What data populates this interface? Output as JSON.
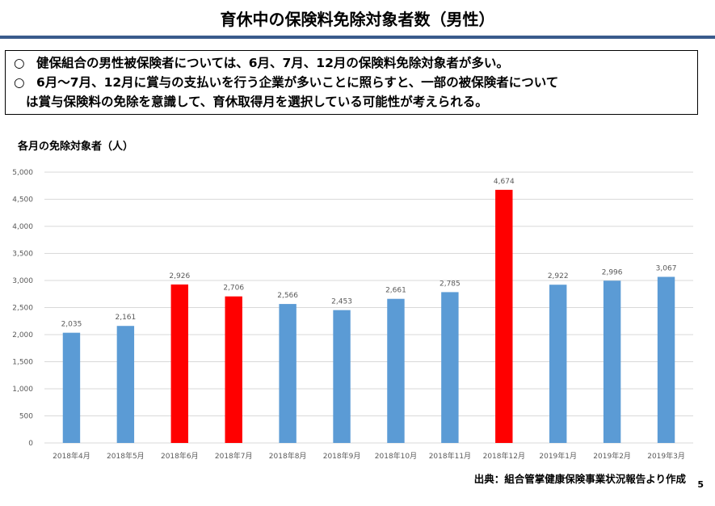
{
  "page": {
    "title": "育休中の保険料免除対象者数（男性）",
    "summary": [
      {
        "mark": "○",
        "text": "健保組合の男性被保険者については、6月、7月、12月の保険料免除対象者が多い。"
      },
      {
        "mark": "○",
        "text": "6月～7月、12月に賞与の支払いを行う企業が多いことに照らすと、一部の被保険者について"
      },
      {
        "mark": "",
        "text": "は賞与保険料の免除を意識して、育休取得月を選択している可能性が考えられる。"
      }
    ],
    "chart_label": "各月の免除対象者（人）",
    "source": "出典：組合管掌健康保険事業状況報告より作成",
    "page_number": "5"
  },
  "chart_data": {
    "type": "bar",
    "title": "",
    "xlabel": "",
    "ylabel": "",
    "categories": [
      "2018年4月",
      "2018年5月",
      "2018年6月",
      "2018年7月",
      "2018年8月",
      "2018年9月",
      "2018年10月",
      "2018年11月",
      "2018年12月",
      "2019年1月",
      "2019年2月",
      "2019年3月"
    ],
    "values": [
      2035,
      2161,
      2926,
      2706,
      2566,
      2453,
      2661,
      2785,
      4674,
      2922,
      2996,
      3067
    ],
    "data_labels": [
      "2,035",
      "2,161",
      "2,926",
      "2,706",
      "2,566",
      "2,453",
      "2,661",
      "2,785",
      "4,674",
      "2,922",
      "2,996",
      "3,067"
    ],
    "ylim": [
      0,
      5000
    ],
    "yticks": [
      0,
      500,
      1000,
      1500,
      2000,
      2500,
      3000,
      3500,
      4000,
      4500,
      5000
    ],
    "ytick_labels": [
      "0",
      "500",
      "1,000",
      "1,500",
      "2,000",
      "2,500",
      "3,000",
      "3,500",
      "4,000",
      "4,500",
      "5,000"
    ],
    "highlight": [
      false,
      false,
      true,
      true,
      false,
      false,
      false,
      false,
      true,
      false,
      false,
      false
    ],
    "grid": true,
    "legend": "none",
    "colors": {
      "normal": "#5b9bd5",
      "highlight": "#ff0000",
      "grid": "#d9d9d9",
      "label": "#595959"
    }
  }
}
